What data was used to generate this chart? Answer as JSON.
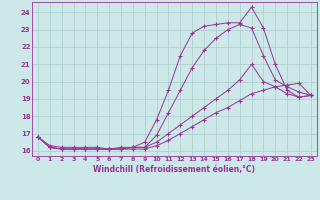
{
  "xlabel": "Windchill (Refroidissement éolien,°C)",
  "background_color": "#cce8e8",
  "line_color": "#993399",
  "grid_color": "#aacccc",
  "xlim": [
    -0.5,
    23.5
  ],
  "ylim": [
    15.7,
    24.6
  ],
  "yticks": [
    16,
    17,
    18,
    19,
    20,
    21,
    22,
    23,
    24
  ],
  "xticks": [
    0,
    1,
    2,
    3,
    4,
    5,
    6,
    7,
    8,
    9,
    10,
    11,
    12,
    13,
    14,
    15,
    16,
    17,
    18,
    19,
    20,
    21,
    22,
    23
  ],
  "lines": [
    {
      "x": [
        0,
        1,
        2,
        3,
        4,
        5,
        6,
        7,
        8,
        9,
        10,
        11,
        12,
        13,
        14,
        15,
        16,
        17,
        18,
        19,
        20,
        21,
        22,
        23
      ],
      "y": [
        16.8,
        16.3,
        16.2,
        16.2,
        16.2,
        16.2,
        16.1,
        16.2,
        16.2,
        16.5,
        17.8,
        19.5,
        21.5,
        22.8,
        23.2,
        23.3,
        23.4,
        23.4,
        24.3,
        23.1,
        21.0,
        19.5,
        19.1,
        19.2
      ]
    },
    {
      "x": [
        0,
        1,
        2,
        3,
        4,
        5,
        6,
        7,
        8,
        9,
        10,
        11,
        12,
        13,
        14,
        15,
        16,
        17,
        18,
        19,
        20,
        21,
        22,
        23
      ],
      "y": [
        16.8,
        16.2,
        16.1,
        16.1,
        16.1,
        16.1,
        16.1,
        16.1,
        16.2,
        16.2,
        16.9,
        18.2,
        19.5,
        20.8,
        21.8,
        22.5,
        23.0,
        23.3,
        23.1,
        21.5,
        20.1,
        19.7,
        19.4,
        19.2
      ]
    },
    {
      "x": [
        0,
        1,
        2,
        3,
        4,
        5,
        6,
        7,
        8,
        9,
        10,
        11,
        12,
        13,
        14,
        15,
        16,
        17,
        18,
        19,
        20,
        21,
        22,
        23
      ],
      "y": [
        16.8,
        16.2,
        16.1,
        16.1,
        16.1,
        16.1,
        16.1,
        16.1,
        16.2,
        16.2,
        16.5,
        17.0,
        17.5,
        18.0,
        18.5,
        19.0,
        19.5,
        20.1,
        21.0,
        20.0,
        19.7,
        19.3,
        19.1,
        19.2
      ]
    },
    {
      "x": [
        0,
        1,
        2,
        3,
        4,
        5,
        6,
        7,
        8,
        9,
        10,
        11,
        12,
        13,
        14,
        15,
        16,
        17,
        18,
        19,
        20,
        21,
        22,
        23
      ],
      "y": [
        16.8,
        16.2,
        16.1,
        16.1,
        16.1,
        16.1,
        16.1,
        16.1,
        16.1,
        16.1,
        16.3,
        16.6,
        17.0,
        17.4,
        17.8,
        18.2,
        18.5,
        18.9,
        19.3,
        19.5,
        19.7,
        19.8,
        19.9,
        19.2
      ]
    }
  ]
}
